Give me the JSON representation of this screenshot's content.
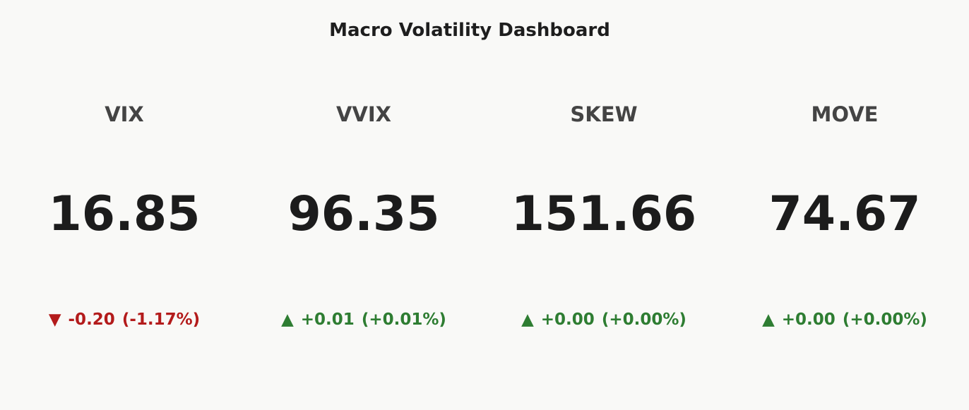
{
  "title": "Macro Volatility Dashboard",
  "cards": [
    {
      "label": "VIX",
      "value": "16.85",
      "arrow": "▼",
      "delta": "-0.20",
      "delta_pct": "(-1.17%)",
      "color": "#b31b1b"
    },
    {
      "label": "VVIX",
      "value": "96.35",
      "arrow": "▲",
      "delta": "+0.01",
      "delta_pct": "(+0.01%)",
      "color": "#2e7d32"
    },
    {
      "label": "SKEW",
      "value": "151.66",
      "arrow": "▲",
      "delta": "+0.00",
      "delta_pct": "(+0.00%)",
      "color": "#2e7d32"
    },
    {
      "label": "MOVE",
      "value": "74.67",
      "arrow": "▲",
      "delta": "+0.00",
      "delta_pct": "(+0.00%)",
      "color": "#2e7d32"
    }
  ]
}
